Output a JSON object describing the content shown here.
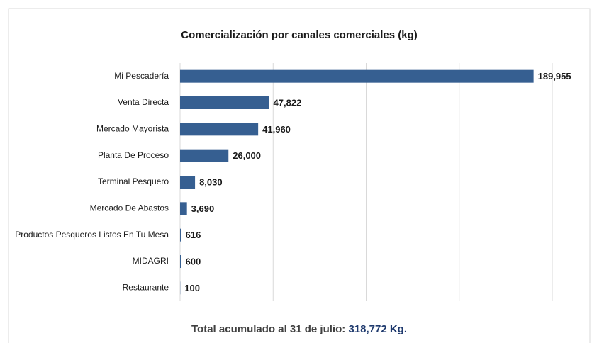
{
  "chart_data": {
    "type": "bar",
    "orientation": "horizontal",
    "title": "Comercialización por canales comerciales (kg)",
    "categories": [
      "Mi Pescadería",
      "Venta Directa",
      "Mercado Mayorista",
      "Planta De Proceso",
      "Terminal Pesquero",
      "Mercado De Abastos",
      "Productos Pesqueros Listos En Tu Mesa",
      "MIDAGRI",
      "Restaurante"
    ],
    "values": [
      189955,
      47822,
      41960,
      26000,
      8030,
      3690,
      616,
      600,
      100
    ],
    "value_labels": [
      "189,955",
      "47,822",
      "41,960",
      "26,000",
      "8,030",
      "3,690",
      "616",
      "600",
      "100"
    ],
    "color": "#365f91",
    "xlim": [
      0,
      200000
    ],
    "xticks": [
      0,
      50000,
      100000,
      150000,
      200000
    ],
    "grid": true,
    "footer_label": "Total acumulado al 31 de julio:",
    "footer_value": "318,772 Kg."
  }
}
